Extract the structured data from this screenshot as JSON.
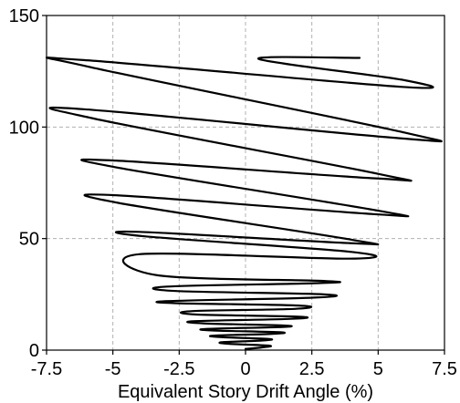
{
  "chart_data": {
    "type": "line",
    "title": "",
    "xlabel": "Equivalent Story Drift Angle (%)",
    "ylabel": "",
    "xlim": [
      -7.5,
      7.5
    ],
    "ylim": [
      0,
      150
    ],
    "xticks": [
      -7.5,
      -5,
      -2.5,
      0,
      2.5,
      5,
      7.5
    ],
    "xtick_labels": [
      "-7.5",
      "-5",
      "-2.5",
      "0",
      "2.5",
      "5",
      "7.5"
    ],
    "yticks": [
      0,
      50,
      100,
      150
    ],
    "ytick_labels": [
      "0",
      "50",
      "100",
      "150"
    ],
    "grid": true,
    "legend": "none",
    "series": [
      {
        "values": [
          [
            0,
            0.5
          ],
          [
            0.6,
            1.2
          ],
          [
            0.9,
            2.0
          ],
          [
            -0.6,
            2.8
          ],
          [
            -0.9,
            3.5
          ],
          [
            0.6,
            4.3
          ],
          [
            0.9,
            5.0
          ],
          [
            -0.9,
            5.8
          ],
          [
            -1.2,
            6.5
          ],
          [
            1.0,
            7.3
          ],
          [
            1.3,
            8.0
          ],
          [
            -1.2,
            8.8
          ],
          [
            -1.5,
            9.5
          ],
          [
            1.2,
            10.3
          ],
          [
            1.5,
            11.0
          ],
          [
            -1.6,
            12.0
          ],
          [
            -1.9,
            13.0
          ],
          [
            1.7,
            14.0
          ],
          [
            2.0,
            15.0
          ],
          [
            -1.9,
            16.0
          ],
          [
            -2.0,
            17.5
          ],
          [
            1.9,
            18.5
          ],
          [
            2.0,
            20.0
          ],
          [
            -2.5,
            21.0
          ],
          [
            -2.9,
            22.0
          ],
          [
            2.5,
            23.5
          ],
          [
            2.95,
            25.0
          ],
          [
            -2.6,
            26.5
          ],
          [
            -2.95,
            28.5
          ],
          [
            2.6,
            30.0
          ],
          [
            3.0,
            31.0
          ],
          [
            -3.3,
            33.5
          ],
          [
            -4.0,
            43.0
          ],
          [
            3.9,
            41.0
          ],
          [
            4.0,
            44.0
          ],
          [
            -3.8,
            51.0
          ],
          [
            -4.0,
            53.0
          ],
          [
            3.9,
            48.0
          ],
          [
            4.0,
            49.5
          ],
          [
            -4.8,
            66.0
          ],
          [
            -5.0,
            69.5
          ],
          [
            4.8,
            61.0
          ],
          [
            5.0,
            62.5
          ],
          [
            -4.9,
            82.0
          ],
          [
            -5.0,
            85.0
          ],
          [
            4.9,
            77.0
          ],
          [
            5.0,
            79.0
          ],
          [
            -5.8,
            104.0
          ],
          [
            -6.1,
            108.0
          ],
          [
            5.8,
            95.0
          ],
          [
            6.0,
            97.5
          ],
          [
            -5.9,
            127.0
          ],
          [
            -6.1,
            130.0
          ],
          [
            5.9,
            118.0
          ],
          [
            6.0,
            121.0
          ],
          [
            0.5,
            130.5
          ],
          [
            4.3,
            131.0
          ]
        ]
      }
    ]
  }
}
